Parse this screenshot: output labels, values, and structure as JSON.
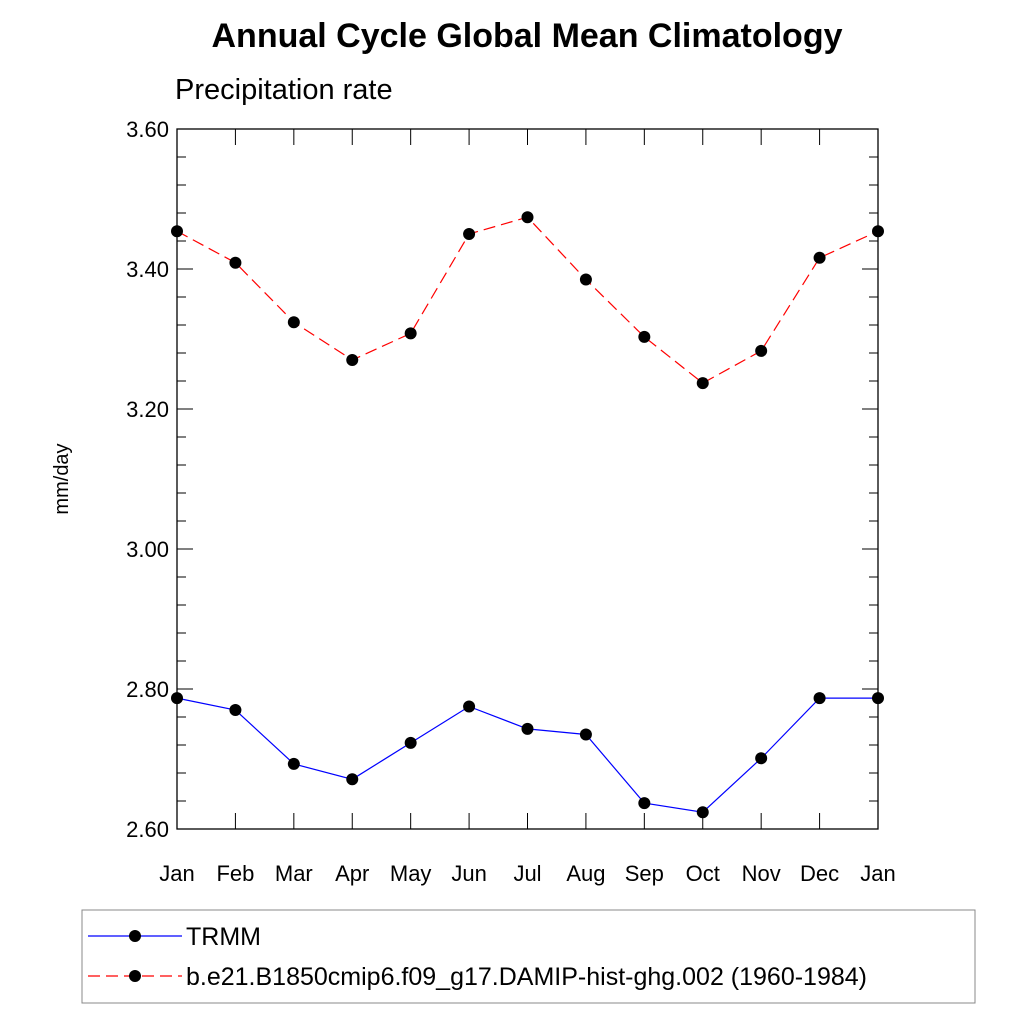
{
  "chart_data": {
    "type": "line",
    "title": "Annual Cycle Global Mean Climatology",
    "subtitle": "Precipitation rate",
    "xlabel": "",
    "ylabel": "mm/day",
    "categories": [
      "Jan",
      "Feb",
      "Mar",
      "Apr",
      "May",
      "Jun",
      "Jul",
      "Aug",
      "Sep",
      "Oct",
      "Nov",
      "Dec",
      "Jan"
    ],
    "ylim": [
      2.6,
      3.6
    ],
    "yticks": [
      2.6,
      2.8,
      3.0,
      3.2,
      3.4,
      3.6
    ],
    "ytick_labels": [
      "2.60",
      "2.80",
      "3.00",
      "3.20",
      "3.40",
      "3.60"
    ],
    "grid": false,
    "legend_position": "bottom",
    "series": [
      {
        "name": "TRMM",
        "color": "#0000ff",
        "line_style": "solid",
        "marker": "filled-circle",
        "values": [
          2.787,
          2.77,
          2.693,
          2.671,
          2.723,
          2.775,
          2.743,
          2.735,
          2.637,
          2.624,
          2.701,
          2.787,
          2.787
        ]
      },
      {
        "name": "b.e21.B1850cmip6.f09_g17.DAMIP-hist-ghg.002 (1960-1984)",
        "color": "#ff0000",
        "line_style": "dashed",
        "marker": "filled-circle",
        "values": [
          3.454,
          3.409,
          3.324,
          3.27,
          3.308,
          3.45,
          3.474,
          3.385,
          3.303,
          3.237,
          3.283,
          3.416,
          3.454
        ]
      }
    ]
  }
}
